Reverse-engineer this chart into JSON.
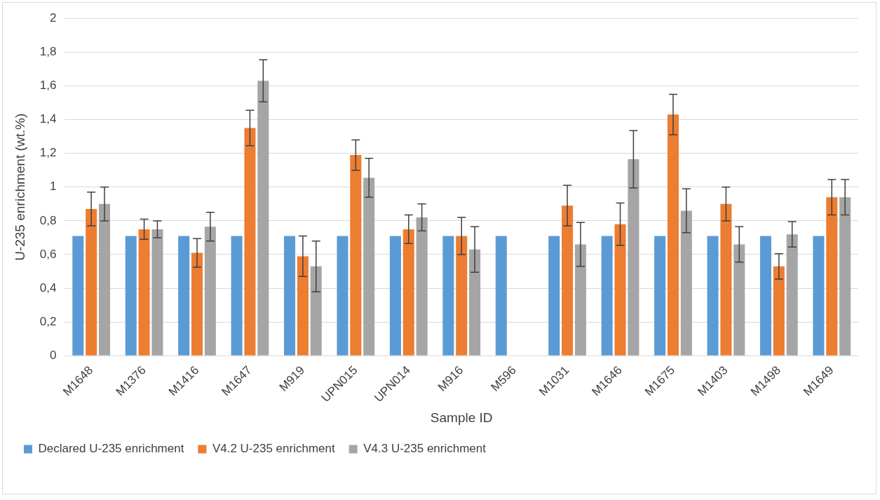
{
  "chart_data": {
    "type": "bar",
    "xlabel": "Sample ID",
    "ylabel": "U-235 enrichment (wt.%)",
    "categories": [
      "M1648",
      "M1376",
      "M1416",
      "M1647",
      "M919",
      "UPN015",
      "UPN014",
      "M916",
      "M596",
      "M1031",
      "M1646",
      "M1675",
      "M1403",
      "M1498",
      "M1649"
    ],
    "series": [
      {
        "name": "Declared U-235 enrichment",
        "color": "#5b9bd5",
        "values": [
          0.71,
          0.71,
          0.71,
          0.71,
          0.71,
          0.71,
          0.71,
          0.71,
          0.71,
          0.71,
          0.71,
          0.71,
          0.71,
          0.71,
          0.71
        ]
      },
      {
        "name": "V4.2 U-235 enrichment",
        "color": "#ed7d31",
        "values": [
          0.87,
          0.75,
          0.61,
          1.35,
          0.59,
          1.19,
          0.75,
          0.71,
          0,
          0.89,
          0.78,
          1.43,
          0.9,
          0.53,
          0.94
        ],
        "errors": [
          0.1,
          0.06,
          0.085,
          0.105,
          0.12,
          0.09,
          0.085,
          0.11,
          null,
          0.12,
          0.125,
          0.12,
          0.1,
          0.075,
          0.105
        ]
      },
      {
        "name": "V4.3 U-235 enrichment",
        "color": "#a5a5a5",
        "values": [
          0.9,
          0.75,
          0.765,
          1.63,
          0.53,
          1.055,
          0.82,
          0.63,
          0,
          0.66,
          1.165,
          0.86,
          0.66,
          0.72,
          0.94
        ],
        "errors": [
          0.1,
          0.05,
          0.085,
          0.125,
          0.15,
          0.115,
          0.08,
          0.135,
          null,
          0.13,
          0.17,
          0.13,
          0.105,
          0.075,
          0.105
        ]
      }
    ],
    "ylim": [
      0,
      2
    ],
    "yticks": [
      0,
      {
        "value": 0.2,
        "label": "0,2"
      },
      {
        "value": 0.4,
        "label": "0,4"
      },
      {
        "value": 0.6,
        "label": "0,6"
      },
      {
        "value": 0.8,
        "label": "0,8"
      },
      1,
      {
        "value": 1.2,
        "label": "1,2"
      },
      {
        "value": 1.4,
        "label": "1,4"
      },
      {
        "value": 1.6,
        "label": "1,6"
      },
      {
        "value": 1.8,
        "label": "1,8"
      },
      2
    ],
    "grid": "y",
    "legend": "bottom"
  }
}
